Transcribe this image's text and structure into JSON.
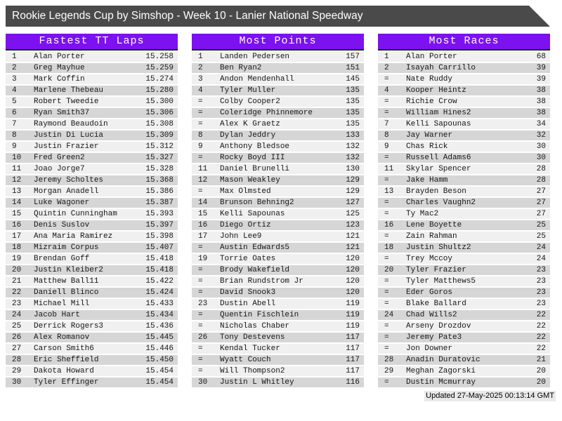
{
  "title_bar": {
    "title": "Rookie Legends Cup by Simshop - Week 10 - Lanier National Speedway"
  },
  "footer": {
    "updated": "Updated 27-May-2025 00:13:14 GMT"
  },
  "colors": {
    "accent_purple": "#7d11f0",
    "title_bar_bg": "#4a4a4a",
    "row_light": "#f0f0f0",
    "row_dark": "#d6d6d6"
  },
  "panels": [
    {
      "title": "Fastest TT Laps",
      "rows": [
        {
          "rank": "1",
          "name": "Alan Porter",
          "value": "15.258"
        },
        {
          "rank": "2",
          "name": "Greg Mayhue",
          "value": "15.259"
        },
        {
          "rank": "3",
          "name": "Mark Coffin",
          "value": "15.274"
        },
        {
          "rank": "4",
          "name": "Marlene Thebeau",
          "value": "15.280"
        },
        {
          "rank": "5",
          "name": "Robert Tweedie",
          "value": "15.300"
        },
        {
          "rank": "6",
          "name": "Ryan Smith37",
          "value": "15.306"
        },
        {
          "rank": "7",
          "name": "Raymond Beaudoin",
          "value": "15.308"
        },
        {
          "rank": "8",
          "name": "Justin Di Lucia",
          "value": "15.309"
        },
        {
          "rank": "9",
          "name": "Justin Frazier",
          "value": "15.312"
        },
        {
          "rank": "10",
          "name": "Fred Green2",
          "value": "15.327"
        },
        {
          "rank": "11",
          "name": "Joao Jorge7",
          "value": "15.328"
        },
        {
          "rank": "12",
          "name": "Jeremy Scholtes",
          "value": "15.368"
        },
        {
          "rank": "13",
          "name": "Morgan Anadell",
          "value": "15.386"
        },
        {
          "rank": "14",
          "name": "Luke Wagoner",
          "value": "15.387"
        },
        {
          "rank": "15",
          "name": "Quintin Cunningham",
          "value": "15.393"
        },
        {
          "rank": "16",
          "name": "Denis Suslov",
          "value": "15.397"
        },
        {
          "rank": "17",
          "name": "Ana Maria Ramirez",
          "value": "15.398"
        },
        {
          "rank": "18",
          "name": "Mizraim Corpus",
          "value": "15.407"
        },
        {
          "rank": "19",
          "name": "Brendan Goff",
          "value": "15.418"
        },
        {
          "rank": "20",
          "name": "Justin Kleiber2",
          "value": "15.418"
        },
        {
          "rank": "21",
          "name": "Matthew Ball11",
          "value": "15.422"
        },
        {
          "rank": "22",
          "name": "Daniell Blinco",
          "value": "15.424"
        },
        {
          "rank": "23",
          "name": "Michael Mill",
          "value": "15.433"
        },
        {
          "rank": "24",
          "name": "Jacob Hart",
          "value": "15.434"
        },
        {
          "rank": "25",
          "name": "Derrick Rogers3",
          "value": "15.436"
        },
        {
          "rank": "26",
          "name": "Alex Romanov",
          "value": "15.445"
        },
        {
          "rank": "27",
          "name": "Carson Smith6",
          "value": "15.446"
        },
        {
          "rank": "28",
          "name": "Eric Sheffield",
          "value": "15.450"
        },
        {
          "rank": "29",
          "name": "Dakota Howard",
          "value": "15.454"
        },
        {
          "rank": "30",
          "name": "Tyler Effinger",
          "value": "15.454"
        }
      ]
    },
    {
      "title": "Most Points",
      "rows": [
        {
          "rank": "1",
          "name": "Landen Pedersen",
          "value": "157"
        },
        {
          "rank": "2",
          "name": "Ben Ryan2",
          "value": "151"
        },
        {
          "rank": "3",
          "name": "Andon Mendenhall",
          "value": "145"
        },
        {
          "rank": "4",
          "name": "Tyler Muller",
          "value": "135"
        },
        {
          "rank": "=",
          "name": "Colby Cooper2",
          "value": "135"
        },
        {
          "rank": "=",
          "name": "Coleridge Phinnemore",
          "value": "135"
        },
        {
          "rank": "=",
          "name": "Alex K Graetz",
          "value": "135"
        },
        {
          "rank": "8",
          "name": "Dylan Jeddry",
          "value": "133"
        },
        {
          "rank": "9",
          "name": "Anthony Bledsoe",
          "value": "132"
        },
        {
          "rank": "=",
          "name": "Rocky Boyd III",
          "value": "132"
        },
        {
          "rank": "11",
          "name": "Daniel Brunelli",
          "value": "130"
        },
        {
          "rank": "12",
          "name": "Mason Weakley",
          "value": "129"
        },
        {
          "rank": "=",
          "name": "Max Olmsted",
          "value": "129"
        },
        {
          "rank": "14",
          "name": "Brunson Behning2",
          "value": "127"
        },
        {
          "rank": "15",
          "name": "Kelli Sapounas",
          "value": "125"
        },
        {
          "rank": "16",
          "name": "Diego Ortiz",
          "value": "123"
        },
        {
          "rank": "17",
          "name": "John Lee9",
          "value": "121"
        },
        {
          "rank": "=",
          "name": "Austin Edwards5",
          "value": "121"
        },
        {
          "rank": "19",
          "name": "Torrie Oates",
          "value": "120"
        },
        {
          "rank": "=",
          "name": "Brody Wakefield",
          "value": "120"
        },
        {
          "rank": "=",
          "name": "Brian Rundstrom Jr",
          "value": "120"
        },
        {
          "rank": "=",
          "name": "David Snook3",
          "value": "120"
        },
        {
          "rank": "23",
          "name": "Dustin Abell",
          "value": "119"
        },
        {
          "rank": "=",
          "name": "Quentin Fischlein",
          "value": "119"
        },
        {
          "rank": "=",
          "name": "Nicholas Chaber",
          "value": "119"
        },
        {
          "rank": "26",
          "name": "Tony Destevens",
          "value": "117"
        },
        {
          "rank": "=",
          "name": "Kendal Tucker",
          "value": "117"
        },
        {
          "rank": "=",
          "name": "Wyatt Couch",
          "value": "117"
        },
        {
          "rank": "=",
          "name": "Will Thompson2",
          "value": "117"
        },
        {
          "rank": "30",
          "name": "Justin L Whitley",
          "value": "116"
        }
      ]
    },
    {
      "title": "Most Races",
      "rows": [
        {
          "rank": "1",
          "name": "Alan Porter",
          "value": "68"
        },
        {
          "rank": "2",
          "name": "Isayah Carrillo",
          "value": "39"
        },
        {
          "rank": "=",
          "name": "Nate Ruddy",
          "value": "39"
        },
        {
          "rank": "4",
          "name": "Kooper Heintz",
          "value": "38"
        },
        {
          "rank": "=",
          "name": "Richie Crow",
          "value": "38"
        },
        {
          "rank": "=",
          "name": "William Hines2",
          "value": "38"
        },
        {
          "rank": "7",
          "name": "Kelli Sapounas",
          "value": "34"
        },
        {
          "rank": "8",
          "name": "Jay Warner",
          "value": "32"
        },
        {
          "rank": "9",
          "name": "Chas Rick",
          "value": "30"
        },
        {
          "rank": "=",
          "name": "Russell Adams6",
          "value": "30"
        },
        {
          "rank": "11",
          "name": "Skylar Spencer",
          "value": "28"
        },
        {
          "rank": "=",
          "name": "Jake Hamm",
          "value": "28"
        },
        {
          "rank": "13",
          "name": "Brayden Beson",
          "value": "27"
        },
        {
          "rank": "=",
          "name": "Charles Vaughn2",
          "value": "27"
        },
        {
          "rank": "=",
          "name": "Ty Mac2",
          "value": "27"
        },
        {
          "rank": "16",
          "name": "Lene Boyette",
          "value": "25"
        },
        {
          "rank": "=",
          "name": "Zain Rahman",
          "value": "25"
        },
        {
          "rank": "18",
          "name": "Justin Shultz2",
          "value": "24"
        },
        {
          "rank": "=",
          "name": "Trey Mccoy",
          "value": "24"
        },
        {
          "rank": "20",
          "name": "Tyler Frazier",
          "value": "23"
        },
        {
          "rank": "=",
          "name": "Tyler Matthews5",
          "value": "23"
        },
        {
          "rank": "=",
          "name": "Eder Goros",
          "value": "23"
        },
        {
          "rank": "=",
          "name": "Blake Ballard",
          "value": "23"
        },
        {
          "rank": "24",
          "name": "Chad Wills2",
          "value": "22"
        },
        {
          "rank": "=",
          "name": "Arseny Drozdov",
          "value": "22"
        },
        {
          "rank": "=",
          "name": "Jeremy Pate3",
          "value": "22"
        },
        {
          "rank": "=",
          "name": "Jon Downer",
          "value": "22"
        },
        {
          "rank": "28",
          "name": "Anadin Duratovic",
          "value": "21"
        },
        {
          "rank": "29",
          "name": "Meghan Zagorski",
          "value": "20"
        },
        {
          "rank": "=",
          "name": "Dustin Mcmurray",
          "value": "20"
        }
      ]
    }
  ]
}
